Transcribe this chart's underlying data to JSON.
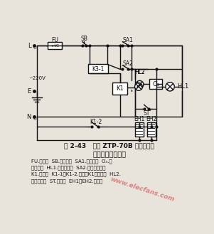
{
  "title_line1": "图 2-43   康宝 ZTP-70B 双门双功能",
  "title_line2": "电子消毒柜电路图",
  "desc_line1": "FU.熔断器  SB.电源开关  SA1.臭氧开关  O₃.臭",
  "desc_line2": "氧发生器  HL1.臭氧指示灯  SA2.高温消毒开关",
  "desc_line3": "K1.继电器  K1-1、K1-2.继电器K1常开触点  HL2.",
  "desc_line4": "消毒指示灯  ST.温控器  EH1、EH2.发热器",
  "bg_color": "#e8e4dc",
  "line_color": "#111111",
  "watermark_color": "#cc3333"
}
